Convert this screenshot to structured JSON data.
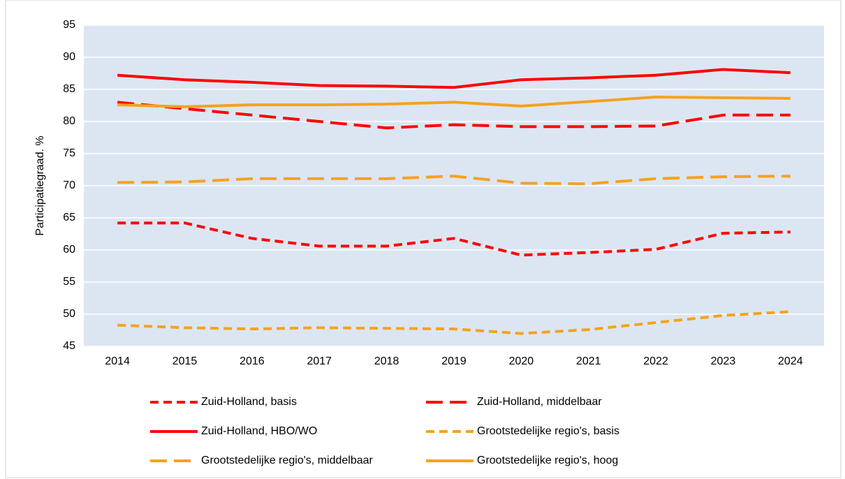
{
  "chart_data": {
    "type": "line",
    "ylabel": "Participatiegraad. %",
    "categories": [
      "2014",
      "2015",
      "2016",
      "2017",
      "2018",
      "2019",
      "2020",
      "2021",
      "2022",
      "2023",
      "2024"
    ],
    "ylim": [
      45,
      95
    ],
    "yticks": [
      45,
      50,
      55,
      60,
      65,
      70,
      75,
      80,
      85,
      90,
      95
    ],
    "grid": true,
    "series": [
      {
        "name": "Zuid-Holland, basis",
        "color": "#ff0000",
        "dash": "dashed",
        "values": [
          64.2,
          64.2,
          61.8,
          60.6,
          60.6,
          61.8,
          59.2,
          59.6,
          60.1,
          62.6,
          62.8
        ]
      },
      {
        "name": "Zuid-Holland, middelbaar",
        "color": "#ff0000",
        "dash": "longdash",
        "values": [
          83.0,
          82.0,
          81.0,
          80.0,
          79.0,
          79.5,
          79.2,
          79.2,
          79.3,
          81.0,
          81.0
        ]
      },
      {
        "name": "Zuid-Holland, HBO/WO",
        "color": "#ff0000",
        "dash": "solid",
        "values": [
          87.2,
          86.5,
          86.1,
          85.6,
          85.5,
          85.3,
          86.5,
          86.8,
          87.2,
          88.1,
          87.6
        ]
      },
      {
        "name": "Grootstedelijke regio's, basis",
        "color": "#f5a21e",
        "dash": "dashed",
        "values": [
          48.3,
          47.9,
          47.7,
          47.9,
          47.8,
          47.7,
          47.0,
          47.6,
          48.7,
          49.8,
          50.4
        ]
      },
      {
        "name": "Grootstedelijke regio's, middelbaar",
        "color": "#f5a21e",
        "dash": "longdash",
        "values": [
          70.5,
          70.6,
          71.1,
          71.1,
          71.1,
          71.5,
          70.4,
          70.3,
          71.1,
          71.4,
          71.5
        ]
      },
      {
        "name": "Grootstedelijke regio's, hoog",
        "color": "#f5a21e",
        "dash": "solid",
        "values": [
          82.6,
          82.3,
          82.6,
          82.6,
          82.7,
          83.0,
          82.4,
          83.1,
          83.8,
          83.7,
          83.6
        ]
      }
    ]
  }
}
